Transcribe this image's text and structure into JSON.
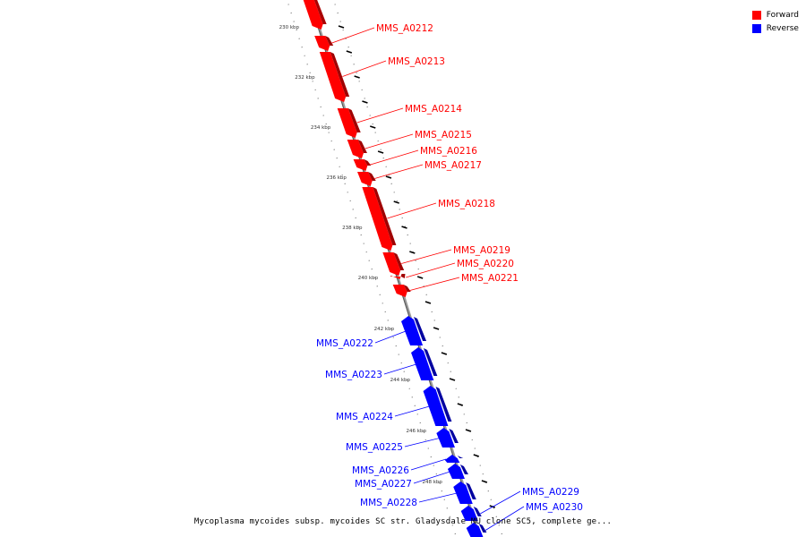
{
  "legend": {
    "forward": {
      "label": "Forward",
      "color": "#ff0000"
    },
    "reverse": {
      "label": "Reverse",
      "color": "#0000ff"
    }
  },
  "caption": "Mycoplasma mycoides subsp. mycoides SC str. Gladysdale MU clone SC5, complete ge...",
  "ticks": [
    "230 kbp",
    "232 kbp",
    "234 kbp",
    "236 kbp",
    "238 kbp",
    "240 kbp",
    "242 kbp",
    "244 kbp",
    "246 kbp",
    "248 kbp"
  ],
  "genes": [
    {
      "name": "MMS_A0212",
      "strand": "forward"
    },
    {
      "name": "MMS_A0213",
      "strand": "forward"
    },
    {
      "name": "MMS_A0214",
      "strand": "forward"
    },
    {
      "name": "MMS_A0215",
      "strand": "forward"
    },
    {
      "name": "MMS_A0216",
      "strand": "forward"
    },
    {
      "name": "MMS_A0217",
      "strand": "forward"
    },
    {
      "name": "MMS_A0218",
      "strand": "forward"
    },
    {
      "name": "MMS_A0219",
      "strand": "forward"
    },
    {
      "name": "MMS_A0220",
      "strand": "forward"
    },
    {
      "name": "MMS_A0221",
      "strand": "forward"
    },
    {
      "name": "MMS_A0222",
      "strand": "reverse"
    },
    {
      "name": "MMS_A0223",
      "strand": "reverse"
    },
    {
      "name": "MMS_A0224",
      "strand": "reverse"
    },
    {
      "name": "MMS_A0225",
      "strand": "reverse"
    },
    {
      "name": "MMS_A0226",
      "strand": "reverse"
    },
    {
      "name": "MMS_A0227",
      "strand": "reverse"
    },
    {
      "name": "MMS_A0228",
      "strand": "reverse"
    },
    {
      "name": "MMS_A0229",
      "strand": "reverse"
    },
    {
      "name": "MMS_A0230",
      "strand": "reverse"
    }
  ]
}
